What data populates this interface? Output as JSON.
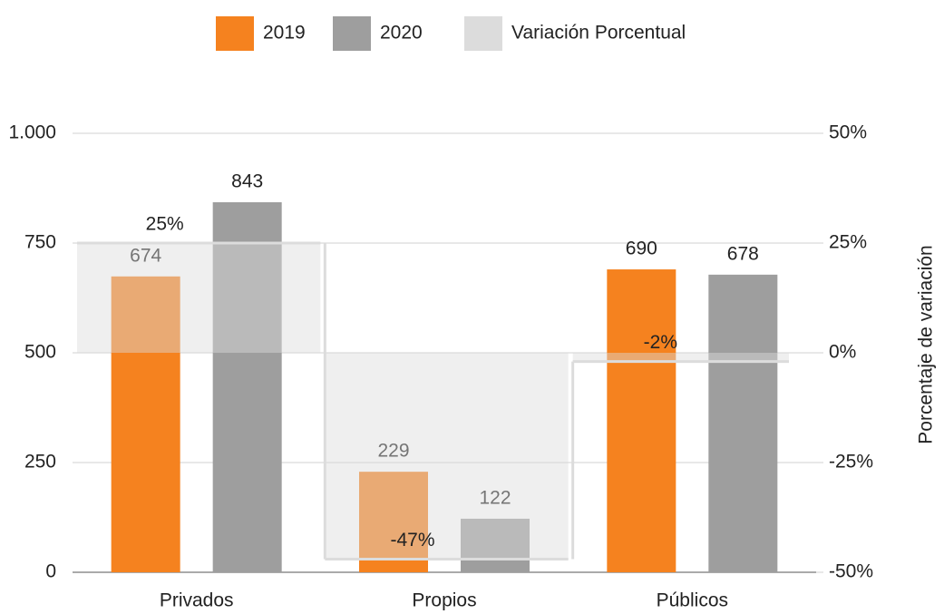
{
  "chart_data": {
    "type": "bar",
    "categories": [
      "Privados",
      "Propios",
      "Públicos"
    ],
    "series": [
      {
        "name": "2019",
        "color": "#f5821f",
        "values": [
          674,
          229,
          690
        ]
      },
      {
        "name": "2020",
        "color": "#9e9e9e",
        "values": [
          843,
          122,
          678
        ]
      },
      {
        "name": "Variación Porcentual",
        "color": "#dcdcdc",
        "type": "area",
        "axis": "y2",
        "values": [
          25,
          -47,
          -2
        ],
        "value_labels": [
          "25%",
          "-47%",
          "-2%"
        ]
      }
    ],
    "ylim": [
      0,
      1000
    ],
    "yticks": [
      0,
      250,
      500,
      750,
      {
        "value": 1000,
        "label": "1.000"
      }
    ],
    "y2lim": [
      -50,
      50
    ],
    "y2ticks": [
      {
        "value": -50,
        "label": "-50%"
      },
      {
        "value": -25,
        "label": "-25%"
      },
      {
        "value": 0,
        "label": "0%"
      },
      {
        "value": 25,
        "label": "25%"
      },
      {
        "value": 50,
        "label": "50%"
      }
    ],
    "y2label": "Porcentaje de variación",
    "grid": true,
    "legend": "top"
  }
}
